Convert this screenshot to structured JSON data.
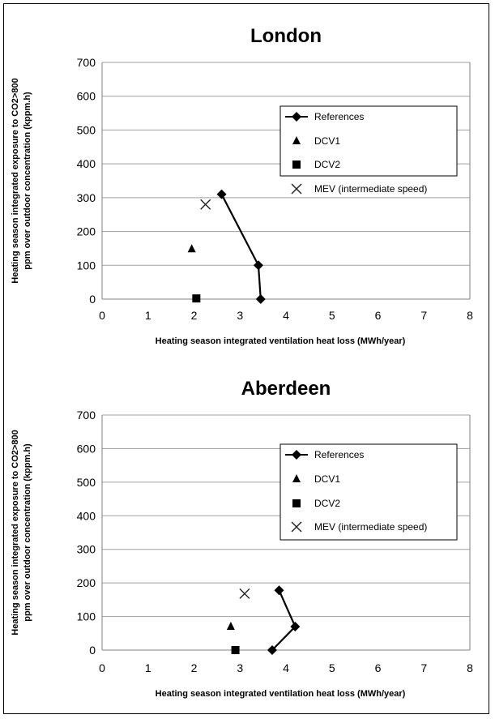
{
  "chart_data": [
    {
      "type": "scatter",
      "title": "London",
      "xlabel": "Heating season integrated ventilation heat loss (MWh/year)",
      "ylabel": "Heating season integrated exposure to CO2>800 ppm over outdoor concentration (kppm.h)",
      "xlim": [
        0,
        8
      ],
      "ylim": [
        0,
        700
      ],
      "x_ticks": [
        "0",
        "1",
        "2",
        "3",
        "4",
        "5",
        "6",
        "7",
        "8"
      ],
      "y_ticks": [
        "0",
        "100",
        "200",
        "300",
        "400",
        "500",
        "600",
        "700"
      ],
      "grid": "horizontal",
      "legend_position": "upper-right",
      "series": [
        {
          "name": "References",
          "marker": "diamond",
          "line": true,
          "points": [
            [
              2.6,
              310
            ],
            [
              3.4,
              100
            ],
            [
              3.45,
              0
            ]
          ]
        },
        {
          "name": "DCV1",
          "marker": "triangle",
          "line": false,
          "points": [
            [
              1.95,
              148
            ]
          ]
        },
        {
          "name": "DCV2",
          "marker": "square",
          "line": false,
          "points": [
            [
              2.05,
              2
            ]
          ]
        },
        {
          "name": "MEV (intermediate speed)",
          "marker": "x",
          "line": false,
          "points": [
            [
              2.25,
              280
            ]
          ]
        }
      ]
    },
    {
      "type": "scatter",
      "title": "Aberdeen",
      "xlabel": "Heating season integrated ventilation heat loss (MWh/year)",
      "ylabel": "Heating season integrated exposure to CO2>800 ppm over outdoor concentration (kppm.h)",
      "xlim": [
        0,
        8
      ],
      "ylim": [
        0,
        700
      ],
      "x_ticks": [
        "0",
        "1",
        "2",
        "3",
        "4",
        "5",
        "6",
        "7",
        "8"
      ],
      "y_ticks": [
        "0",
        "100",
        "200",
        "300",
        "400",
        "500",
        "600",
        "700"
      ],
      "grid": "horizontal",
      "legend_position": "center-right",
      "series": [
        {
          "name": "References",
          "marker": "diamond",
          "line": true,
          "points": [
            [
              3.85,
              178
            ],
            [
              4.2,
              70
            ],
            [
              3.7,
              0
            ]
          ]
        },
        {
          "name": "DCV1",
          "marker": "triangle",
          "line": false,
          "points": [
            [
              2.8,
              70
            ]
          ]
        },
        {
          "name": "DCV2",
          "marker": "square",
          "line": false,
          "points": [
            [
              2.9,
              0
            ]
          ]
        },
        {
          "name": "MEV (intermediate speed)",
          "marker": "x",
          "line": false,
          "points": [
            [
              3.1,
              168
            ]
          ]
        }
      ]
    }
  ]
}
